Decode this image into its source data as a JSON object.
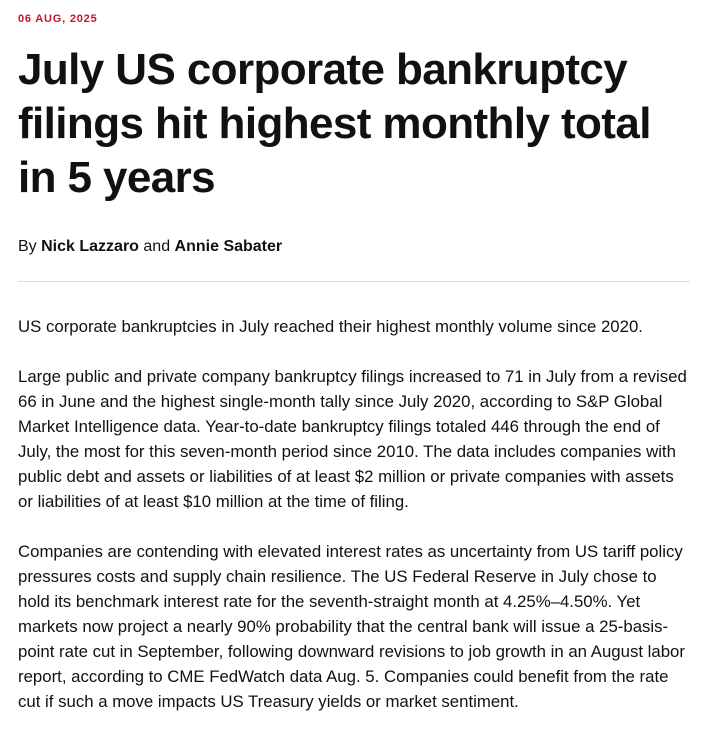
{
  "article": {
    "date": "06 AUG, 2025",
    "headline": "July US corporate bankruptcy filings hit highest monthly total in 5 years",
    "byline": {
      "prefix": "By",
      "author1": "Nick Lazzaro",
      "conjunction": "and",
      "author2": "Annie Sabater"
    },
    "paragraphs": [
      "US corporate bankruptcies in July reached their highest monthly volume since 2020.",
      "Large public and private company bankruptcy filings increased to 71 in July from a revised 66 in June and the highest single-month tally since July 2020, according to S&P Global Market Intelligence data. Year-to-date bankruptcy filings totaled 446 through the end of July, the most for this seven-month period since 2010. The data includes companies with public debt and assets or liabilities of at least $2 million or private companies with assets or liabilities of at least $10 million at the time of filing.",
      "Companies are contending with elevated interest rates as uncertainty from US tariff policy pressures costs and supply chain resilience. The US Federal Reserve in July chose to hold its benchmark interest rate for the seventh-straight month at 4.25%–4.50%. Yet markets now project a nearly 90% probability that the central bank will issue a 25-basis-point rate cut in September, following downward revisions to job growth in an August labor report, according to CME FedWatch data Aug. 5. Companies could benefit from the rate cut if such a move impacts US Treasury yields or market sentiment."
    ]
  },
  "colors": {
    "date_accent": "#c8102e",
    "text": "#111111",
    "divider": "#d9d9d9"
  }
}
